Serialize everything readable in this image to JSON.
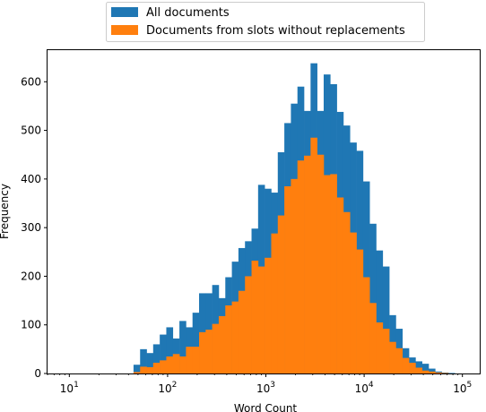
{
  "chart_data": {
    "type": "histogram",
    "xlabel": "Word Count",
    "ylabel": "Frequency",
    "x_scale": "log",
    "xlim": [
      6,
      150000
    ],
    "ylim": [
      0,
      665
    ],
    "yticks": [
      0,
      100,
      200,
      300,
      400,
      500,
      600
    ],
    "xticks": [
      {
        "value": 10,
        "base": "10",
        "exp": "1"
      },
      {
        "value": 100,
        "base": "10",
        "exp": "2"
      },
      {
        "value": 1000,
        "base": "10",
        "exp": "3"
      },
      {
        "value": 10000,
        "base": "10",
        "exp": "4"
      },
      {
        "value": 100000,
        "base": "10",
        "exp": "5"
      }
    ],
    "grid": false,
    "legend_position": "top-center-outside",
    "bin_edges": [
      45,
      52.5,
      61.2,
      71.3,
      83.2,
      97,
      113.1,
      131.9,
      153.8,
      179.3,
      209.1,
      243.8,
      284.3,
      331.5,
      386.6,
      450.8,
      525.7,
      613,
      714.8,
      833.5,
      972,
      1133.4,
      1321.7,
      1541.2,
      1797.2,
      2095.7,
      2443.8,
      2849.7,
      3323.1,
      3875.1,
      4518.8,
      5269.4,
      6144.7,
      7165.3,
      8355.5,
      9743.3,
      11361.7,
      13248.9,
      15449.6,
      18015.8,
      21008.3,
      24497.9,
      28567,
      33312,
      38845.2,
      45297.5,
      52821.6,
      61595.4,
      71826.5,
      83757,
      97669
    ],
    "series": [
      {
        "name": "All documents",
        "color": "#1f77b4",
        "values": [
          18,
          50,
          42,
          60,
          80,
          95,
          72,
          108,
          95,
          125,
          165,
          165,
          182,
          155,
          198,
          230,
          258,
          272,
          298,
          388,
          380,
          372,
          455,
          515,
          555,
          590,
          540,
          638,
          540,
          615,
          595,
          538,
          510,
          475,
          458,
          395,
          308,
          253,
          220,
          120,
          92,
          52,
          33,
          25,
          20,
          10,
          4,
          2,
          1,
          0
        ]
      },
      {
        "name": "Documents from slots without replacements",
        "color": "#ff7f0e",
        "values": [
          3,
          14,
          13,
          22,
          27,
          35,
          40,
          35,
          55,
          55,
          85,
          90,
          102,
          118,
          140,
          148,
          170,
          200,
          232,
          220,
          238,
          288,
          325,
          385,
          400,
          438,
          448,
          485,
          450,
          408,
          410,
          362,
          332,
          290,
          255,
          198,
          145,
          105,
          92,
          65,
          52,
          32,
          22,
          12,
          6,
          4,
          2,
          1,
          0,
          0
        ]
      }
    ]
  }
}
